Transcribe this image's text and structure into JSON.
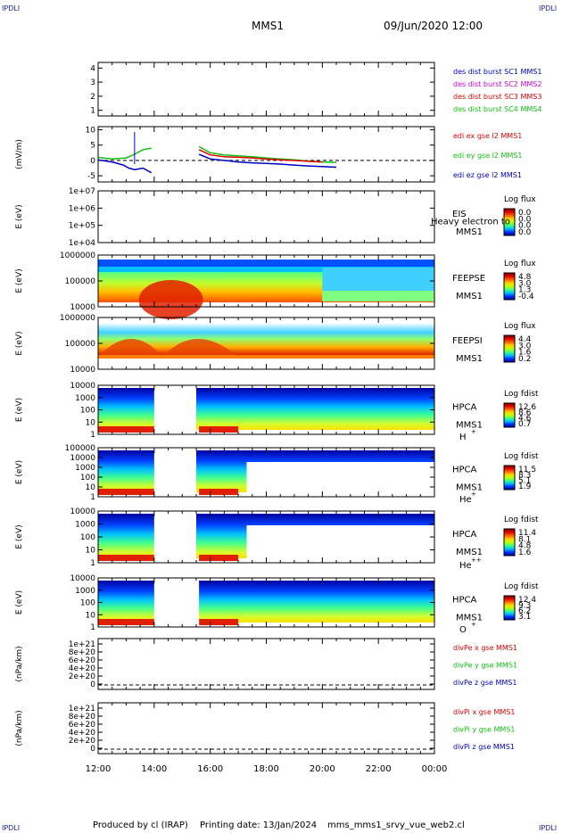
{
  "header": {
    "corner_tl": "IPDLI",
    "corner_tr": "IPDLI",
    "corner_bl": "IPDLI",
    "corner_br": "IPDLI",
    "mission": "MMS1",
    "datetime": "09/Jun/2020 12:00"
  },
  "footer": {
    "producer": "Produced by cl (IRAP)",
    "printing": "Printing date: 13/Jan/2024",
    "script": "mms_mms1_srvy_vue_web2.cl"
  },
  "x_axis": {
    "ticks": [
      "12:00",
      "14:00",
      "16:00",
      "18:00",
      "20:00",
      "22:00",
      "00:00"
    ]
  },
  "colors": {
    "red": "#e00000",
    "magenta": "#d000d0",
    "green": "#10c010",
    "blue": "#0000c0",
    "colorbar": [
      "#000090",
      "#0030ff",
      "#00c0ff",
      "#40ff80",
      "#c0ff00",
      "#ffd000",
      "#ff6000",
      "#e00000",
      "#800000"
    ]
  },
  "chart_data": [
    {
      "id": "p1",
      "type": "line",
      "ylabel": "",
      "yticks": [
        "4",
        "3",
        "2",
        "1"
      ],
      "ylim": [
        0.6,
        4.4
      ],
      "legend": [
        {
          "text": "des dist burst SC1 MMS1",
          "color": "#0000c0"
        },
        {
          "text": "des dist burst SC2 MMS2",
          "color": "#d000d0"
        },
        {
          "text": "des dist burst SC3 MMS3",
          "color": "#e00000"
        },
        {
          "text": "des dist burst SC4 MMS4",
          "color": "#10c010"
        }
      ],
      "series": []
    },
    {
      "id": "p2",
      "type": "line",
      "ylabel": "(mV/m)",
      "yticks": [
        "10",
        "5",
        "0",
        "-5"
      ],
      "ylim": [
        -7,
        11
      ],
      "dashed_zero": true,
      "legend": [
        {
          "text": "edi ex gse l2 MMS1",
          "color": "#e00000"
        },
        {
          "text": "edi ey gse l2 MMS1",
          "color": "#10c010"
        },
        {
          "text": "edi ez gse l2 MMS1",
          "color": "#0000c0"
        }
      ],
      "series": [
        {
          "color": "#10c010",
          "x": [
            12.0,
            12.5,
            13.0,
            13.3,
            13.6,
            13.9,
            15.6,
            16.0,
            16.5,
            17.0,
            17.5,
            18.0,
            18.5,
            19.0,
            19.5,
            20.0,
            20.5
          ],
          "y": [
            1.0,
            0.5,
            0.8,
            2.0,
            3.5,
            4.0,
            4.5,
            2.5,
            1.8,
            1.5,
            1.2,
            0.8,
            0.5,
            0.2,
            -0.2,
            -0.5,
            -0.6
          ]
        },
        {
          "color": "#e00000",
          "x": [
            15.6,
            16.0,
            16.5,
            17.0,
            17.5,
            18.0,
            18.5,
            19.0,
            19.5,
            20.0
          ],
          "y": [
            3.5,
            1.8,
            1.2,
            1.0,
            0.8,
            0.5,
            0.2,
            0.0,
            -0.3,
            -0.5
          ]
        },
        {
          "color": "#0000c0",
          "x": [
            12.0,
            12.5,
            12.9,
            13.1,
            13.3,
            13.6,
            13.9,
            15.6,
            16.0,
            16.5,
            17.0,
            17.5,
            18.0,
            18.5,
            19.0,
            19.5,
            20.0,
            20.5
          ],
          "y": [
            0.2,
            -0.5,
            -1.5,
            -2.5,
            -3.0,
            -2.5,
            -4.0,
            2.0,
            0.5,
            0.0,
            -0.5,
            -0.8,
            -1.0,
            -1.2,
            -1.5,
            -1.8,
            -2.0,
            -2.2
          ]
        }
      ]
    },
    {
      "id": "p3",
      "type": "heatmap",
      "ylabel": "E (eV)",
      "yticks": [
        "1e+07",
        "1e+06",
        "1e+05",
        "1e+04"
      ],
      "label_top": "EIS",
      "label_bottom": "MMS1",
      "overlay": "Heavy electron to",
      "cb_title": "Log flux",
      "cb_ticks": [
        "0.0",
        "0.0",
        "0.0",
        "0.0"
      ],
      "empty": true
    },
    {
      "id": "p4",
      "type": "heatmap",
      "ylabel": "E (eV)",
      "yticks": [
        "1000000",
        "100000",
        "10000"
      ],
      "label_top": "FEEPSE",
      "label_bottom": "MMS1",
      "cb_title": "Log flux",
      "cb_ticks": [
        "4.8",
        "3.0",
        "1.3",
        "-0.4"
      ]
    },
    {
      "id": "p5",
      "type": "heatmap",
      "ylabel": "E (eV)",
      "yticks": [
        "1000000",
        "100000",
        "10000"
      ],
      "label_top": "FEEPSI",
      "label_bottom": "MMS1",
      "cb_title": "Log flux",
      "cb_ticks": [
        "4.4",
        "3.0",
        "1.6",
        "0.2"
      ]
    },
    {
      "id": "p6",
      "type": "heatmap",
      "ylabel": "E (eV)",
      "yticks": [
        "10000",
        "1000",
        "100",
        "10",
        "1"
      ],
      "label_top": "HPCA",
      "label_bottom": "MMS1",
      "species": "H",
      "charge": "+",
      "cb_title": "Log fdist",
      "cb_ticks": [
        "12.6",
        "8.6",
        "4.6",
        "0.7"
      ]
    },
    {
      "id": "p7",
      "type": "heatmap",
      "ylabel": "E (eV)",
      "yticks": [
        "100000",
        "10000",
        "1000",
        "100",
        "10",
        "1"
      ],
      "label_top": "HPCA",
      "label_bottom": "MMS1",
      "species": "He",
      "charge": "+",
      "cb_title": "Log fdist",
      "cb_ticks": [
        "11.5",
        "8.3",
        "5.1",
        "1.9"
      ]
    },
    {
      "id": "p8",
      "type": "heatmap",
      "ylabel": "E (eV)",
      "yticks": [
        "10000",
        "1000",
        "100",
        "10",
        "1"
      ],
      "label_top": "HPCA",
      "label_bottom": "MMS1",
      "species": "He",
      "charge": "++",
      "cb_title": "Log fdist",
      "cb_ticks": [
        "11.4",
        "8.1",
        "4.8",
        "1.6"
      ]
    },
    {
      "id": "p9",
      "type": "heatmap",
      "ylabel": "E (eV)",
      "yticks": [
        "10000",
        "1000",
        "100",
        "10",
        "1"
      ],
      "label_top": "HPCA",
      "label_bottom": "MMS1",
      "species": "O",
      "charge": "+",
      "cb_title": "Log fdist",
      "cb_ticks": [
        "12.4",
        "9.3",
        "6.2",
        "3.1"
      ]
    },
    {
      "id": "p10",
      "type": "line",
      "ylabel": "(nPa/km)",
      "yticks": [
        "1e+21",
        "8e+20",
        "6e+20",
        "4e+20",
        "2e+20",
        "0"
      ],
      "dashed_zero": true,
      "legend": [
        {
          "text": "divPe x gse MMS1",
          "color": "#e00000"
        },
        {
          "text": "divPe y gse MMS1",
          "color": "#10c010"
        },
        {
          "text": "divPe z gse MMS1",
          "color": "#0000c0"
        }
      ],
      "series": []
    },
    {
      "id": "p11",
      "type": "line",
      "ylabel": "(nPa/km)",
      "yticks": [
        "1e+21",
        "8e+20",
        "6e+20",
        "4e+20",
        "2e+20",
        "0"
      ],
      "dashed_zero": true,
      "legend": [
        {
          "text": "divPi x gse MMS1",
          "color": "#e00000"
        },
        {
          "text": "divPi y gse MMS1",
          "color": "#10c010"
        },
        {
          "text": "divPi z gse MMS1",
          "color": "#0000c0"
        }
      ],
      "series": []
    }
  ]
}
